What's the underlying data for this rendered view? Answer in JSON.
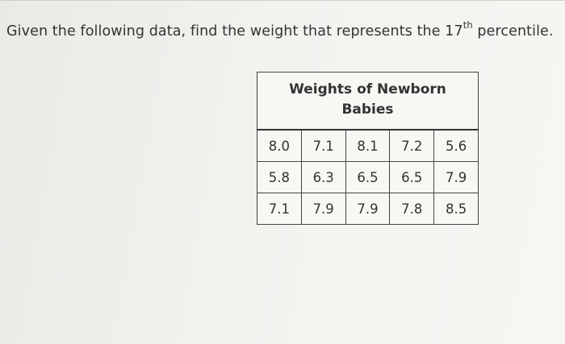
{
  "question": {
    "before": "Given the following data, find the weight that represents the 17",
    "superscript": "th",
    "after": " percentile."
  },
  "table": {
    "title": "Weights of Newborn Babies",
    "rows": [
      [
        "8.0",
        "7.1",
        "8.1",
        "7.2",
        "5.6"
      ],
      [
        "5.8",
        "6.3",
        "6.5",
        "6.5",
        "7.9"
      ],
      [
        "7.1",
        "7.9",
        "7.9",
        "7.8",
        "8.5"
      ]
    ]
  }
}
